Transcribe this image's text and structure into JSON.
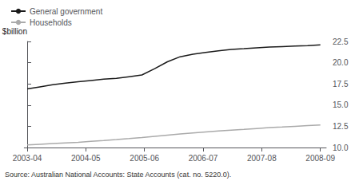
{
  "chart_data": {
    "type": "line",
    "ylabel": "$billion",
    "annotations": [
      "Source: Australian National Accounts: State Accounts (cat. no. 5220.0)."
    ],
    "x": [
      0,
      0.217,
      0.435,
      0.652,
      0.87,
      1.087,
      1.304,
      1.522,
      1.739,
      1.957,
      2.174,
      2.391,
      2.609,
      2.826,
      3.043,
      3.261,
      3.478,
      3.696,
      3.913,
      4.13,
      4.348,
      4.565,
      4.783,
      5.0
    ],
    "series": [
      {
        "name": "General government",
        "color": "#1a1a1a",
        "values": [
          16.9,
          17.15,
          17.4,
          17.6,
          17.75,
          17.9,
          18.05,
          18.15,
          18.35,
          18.55,
          19.3,
          20.1,
          20.7,
          21.0,
          21.2,
          21.4,
          21.55,
          21.65,
          21.75,
          21.85,
          21.9,
          21.95,
          22.0,
          22.1
        ]
      },
      {
        "name": "Households",
        "color": "#aaaaaa",
        "values": [
          10.3,
          10.38,
          10.46,
          10.54,
          10.62,
          10.72,
          10.82,
          10.93,
          11.05,
          11.18,
          11.32,
          11.46,
          11.6,
          11.72,
          11.84,
          11.94,
          12.04,
          12.14,
          12.24,
          12.34,
          12.42,
          12.5,
          12.58,
          12.65
        ]
      }
    ],
    "xlim": [
      -0.05,
      5.1
    ],
    "xticks": [
      {
        "value": 0,
        "label": "2003-04"
      },
      {
        "value": 1,
        "label": "2004-05"
      },
      {
        "value": 2,
        "label": "2005-06"
      },
      {
        "value": 3,
        "label": "2006-07"
      },
      {
        "value": 4,
        "label": "2007-08"
      },
      {
        "value": 5,
        "label": "2008-09"
      }
    ],
    "ylim": [
      10.0,
      22.5
    ],
    "yticks": [
      {
        "value": 10.0,
        "label": "10.0"
      },
      {
        "value": 12.5,
        "label": "12.5"
      },
      {
        "value": 15.0,
        "label": "15.0"
      },
      {
        "value": 17.5,
        "label": "17.5"
      },
      {
        "value": 20.0,
        "label": "20.0"
      },
      {
        "value": 22.5,
        "label": "22.5"
      }
    ],
    "grid": false,
    "legend": "upper left"
  }
}
